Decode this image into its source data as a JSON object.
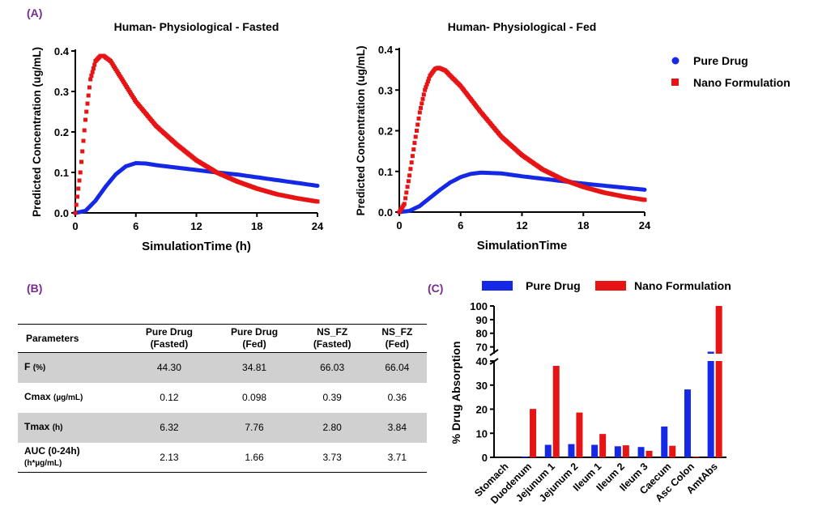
{
  "panels": {
    "a": "(A)",
    "b": "(B)",
    "c": "(C)"
  },
  "colors": {
    "pure": "#1428e6",
    "nano": "#e61414"
  },
  "chart_data": [
    {
      "type": "line",
      "title": "Human- Physiological - Fasted",
      "xlabel": "SimulationTime (h)",
      "ylabel": "Predicted Concentration (ug/mL)",
      "xlim": [
        0,
        24
      ],
      "ylim": [
        0,
        0.4
      ],
      "xticks": [
        "0",
        "6",
        "12",
        "18",
        "24"
      ],
      "yticks": [
        "0.0",
        "0.1",
        "0.2",
        "0.3",
        "0.4"
      ],
      "series": [
        {
          "name": "Pure Drug",
          "color": "#1428e6",
          "x": [
            0,
            1,
            2,
            3,
            4,
            5,
            6,
            7,
            8,
            10,
            12,
            14,
            16,
            18,
            20,
            22,
            24
          ],
          "y": [
            0,
            0.005,
            0.03,
            0.065,
            0.095,
            0.115,
            0.123,
            0.122,
            0.118,
            0.112,
            0.106,
            0.1,
            0.095,
            0.088,
            0.081,
            0.074,
            0.067
          ]
        },
        {
          "name": "Nano Formulation",
          "color": "#e61414",
          "x": [
            0,
            0.5,
            1,
            1.5,
            2,
            2.5,
            2.8,
            3.5,
            4,
            5,
            6,
            8,
            10,
            12,
            14,
            16,
            18,
            20,
            22,
            24
          ],
          "y": [
            0,
            0.1,
            0.23,
            0.33,
            0.375,
            0.388,
            0.388,
            0.375,
            0.355,
            0.315,
            0.275,
            0.215,
            0.17,
            0.13,
            0.1,
            0.078,
            0.06,
            0.046,
            0.036,
            0.028
          ]
        }
      ]
    },
    {
      "type": "line",
      "title": "Human- Physiological - Fed",
      "xlabel": "SimulationTime",
      "ylabel": "Predicted Concentration (ug/mL)",
      "xlim": [
        0,
        24
      ],
      "ylim": [
        0,
        0.4
      ],
      "xticks": [
        "0",
        "6",
        "12",
        "18",
        "24"
      ],
      "yticks": [
        "0.0",
        "0.1",
        "0.2",
        "0.3",
        "0.4"
      ],
      "series": [
        {
          "name": "Pure Drug",
          "color": "#1428e6",
          "x": [
            0,
            1,
            2,
            3,
            4,
            5,
            6,
            7,
            8,
            10,
            12,
            14,
            16,
            18,
            20,
            22,
            24
          ],
          "y": [
            0,
            0.003,
            0.015,
            0.035,
            0.055,
            0.073,
            0.086,
            0.094,
            0.097,
            0.095,
            0.088,
            0.082,
            0.076,
            0.07,
            0.065,
            0.06,
            0.055
          ]
        },
        {
          "name": "Nano Formulation",
          "color": "#e61414",
          "x": [
            0,
            0.5,
            1,
            1.5,
            2,
            2.5,
            3,
            3.5,
            3.84,
            4.5,
            5,
            6,
            8,
            10,
            12,
            14,
            16,
            18,
            20,
            22,
            24
          ],
          "y": [
            0,
            0.02,
            0.09,
            0.17,
            0.245,
            0.3,
            0.335,
            0.352,
            0.355,
            0.348,
            0.335,
            0.31,
            0.245,
            0.185,
            0.14,
            0.105,
            0.08,
            0.062,
            0.048,
            0.038,
            0.03
          ]
        }
      ]
    },
    {
      "type": "bar",
      "ylabel": "% Drug Absorption",
      "categories": [
        "Stomach",
        "Duodenum",
        "Jejunum 1",
        "Jejunum 2",
        "Ileum 1",
        "Ileum 2",
        "Ileum 3",
        "Caecum",
        "Asc Colon",
        "AmtAbs"
      ],
      "series": [
        {
          "name": "Pure Drug",
          "color": "#1428e6",
          "values": [
            0,
            0.3,
            5.2,
            5.5,
            5.2,
            4.6,
            4.3,
            12.8,
            28.2,
            66.5
          ]
        },
        {
          "name": "Nano Formulation",
          "color": "#e61414",
          "values": [
            0,
            20.1,
            38,
            18.6,
            9.7,
            5,
            2.7,
            4.8,
            0.3,
            100
          ]
        }
      ],
      "axis_break": {
        "lower": [
          0,
          40
        ],
        "upper": [
          65,
          100
        ]
      },
      "lower_ticks": [
        "0",
        "10",
        "20",
        "30",
        "40"
      ],
      "upper_ticks": [
        "70",
        "80",
        "90",
        "100"
      ]
    }
  ],
  "legend_ab": {
    "pure": "Pure Drug",
    "nano": "Nano Formulation"
  },
  "legend_c": {
    "pure": "Pure Drug",
    "nano": "Nano Formulation"
  },
  "table": {
    "headers": [
      {
        "l1": "Parameters",
        "l2": ""
      },
      {
        "l1": "Pure Drug",
        "l2": "(Fasted)"
      },
      {
        "l1": "Pure Drug",
        "l2": "(Fed)"
      },
      {
        "l1": "NS_FZ",
        "l2": "(Fasted)"
      },
      {
        "l1": "NS_FZ",
        "l2": "(Fed)"
      }
    ],
    "rows": [
      {
        "param": "F",
        "unit": "(%)",
        "unit2": "",
        "values": [
          "44.30",
          "34.81",
          "66.03",
          "66.04"
        ]
      },
      {
        "param": "Cmax",
        "unit": "(µg/mL)",
        "unit2": "",
        "values": [
          "0.12",
          "0.098",
          "0.39",
          "0.36"
        ]
      },
      {
        "param": "Tmax",
        "unit": "(h)",
        "unit2": "",
        "values": [
          "6.32",
          "7.76",
          "2.80",
          "3.84"
        ]
      },
      {
        "param": "AUC (0-24h)",
        "unit": "",
        "unit2": "(h*µg/mL)",
        "values": [
          "2.13",
          "1.66",
          "3.73",
          "3.71"
        ]
      }
    ]
  }
}
